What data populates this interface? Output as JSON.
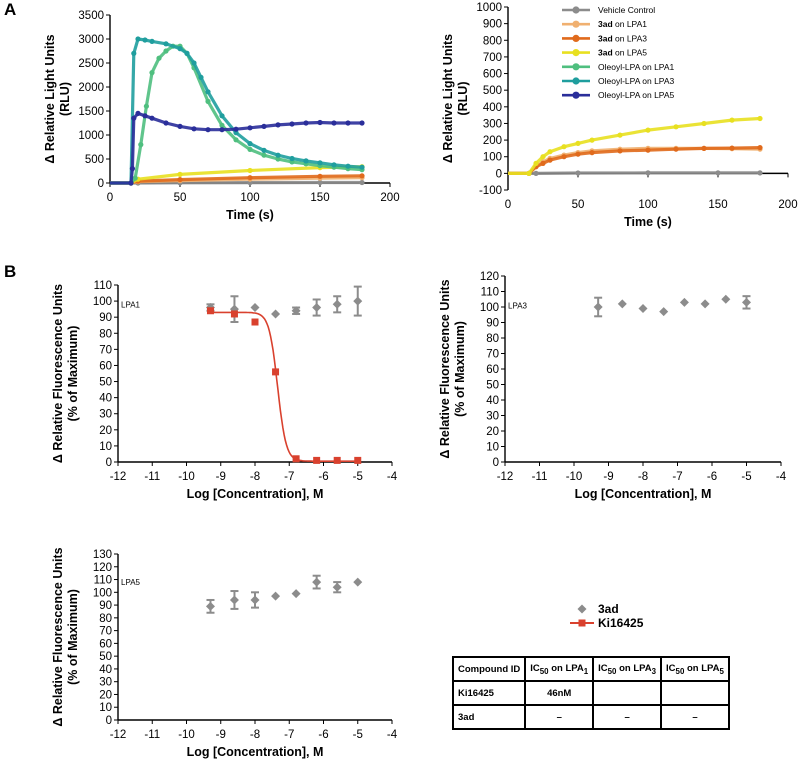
{
  "panel_labels": [
    "A",
    "B"
  ],
  "chart_data": [
    {
      "id": "A1",
      "type": "line",
      "xlabel": "Time (s)",
      "ylabel": "Δ Relative Light Units",
      "ylabel2": "(RLU)",
      "xlim": [
        0,
        200
      ],
      "ylim": [
        0,
        3500
      ],
      "xticks": [
        0,
        50,
        100,
        150,
        200
      ],
      "yticks": [
        0,
        500,
        1000,
        1500,
        2000,
        2500,
        3000,
        3500
      ],
      "series": [
        {
          "name": "Vehicle Control",
          "color": "#8c8c8c",
          "x": [
            0,
            10,
            15,
            20,
            50,
            100,
            150,
            180
          ],
          "y": [
            0,
            0,
            0,
            0,
            5,
            8,
            10,
            10
          ]
        },
        {
          "name": "3ad on LPA1",
          "color": "#f0b070",
          "x": [
            0,
            10,
            15,
            20,
            50,
            100,
            150,
            180
          ],
          "y": [
            0,
            0,
            0,
            30,
            50,
            80,
            100,
            110
          ]
        },
        {
          "name": "3ad on LPA3",
          "color": "#e06a1c",
          "x": [
            0,
            10,
            15,
            20,
            50,
            100,
            150,
            180
          ],
          "y": [
            0,
            0,
            0,
            40,
            70,
            110,
            140,
            150
          ]
        },
        {
          "name": "3ad on LPA5",
          "color": "#e8e020",
          "x": [
            0,
            10,
            15,
            20,
            50,
            100,
            150,
            180
          ],
          "y": [
            0,
            0,
            0,
            80,
            180,
            260,
            320,
            340
          ]
        },
        {
          "name": "Oleoyl-LPA on LPA1",
          "color": "#4fbf7f",
          "x": [
            0,
            10,
            15,
            18,
            22,
            26,
            30,
            35,
            40,
            45,
            50,
            55,
            60,
            70,
            80,
            90,
            100,
            110,
            120,
            130,
            140,
            150,
            160,
            170,
            180
          ],
          "y": [
            0,
            0,
            0,
            100,
            800,
            1600,
            2300,
            2600,
            2750,
            2850,
            2850,
            2700,
            2400,
            1700,
            1200,
            900,
            700,
            580,
            500,
            440,
            400,
            360,
            330,
            300,
            280
          ]
        },
        {
          "name": "Oleoyl-LPA on LPA3",
          "color": "#1f9e9e",
          "x": [
            0,
            10,
            15,
            17,
            20,
            25,
            30,
            40,
            50,
            55,
            60,
            65,
            70,
            80,
            90,
            100,
            110,
            120,
            130,
            140,
            150,
            160,
            170,
            180
          ],
          "y": [
            0,
            0,
            0,
            2700,
            3000,
            2980,
            2950,
            2900,
            2800,
            2700,
            2500,
            2200,
            1900,
            1400,
            1050,
            820,
            680,
            580,
            510,
            460,
            420,
            380,
            350,
            330
          ]
        },
        {
          "name": "Oleoyl-LPA on LPA5",
          "color": "#2a2e9a",
          "x": [
            0,
            10,
            15,
            16,
            17,
            20,
            25,
            30,
            40,
            50,
            60,
            70,
            80,
            90,
            100,
            110,
            120,
            130,
            140,
            150,
            160,
            170,
            180
          ],
          "y": [
            0,
            0,
            0,
            300,
            1350,
            1450,
            1400,
            1350,
            1250,
            1180,
            1130,
            1110,
            1110,
            1120,
            1150,
            1180,
            1210,
            1230,
            1250,
            1260,
            1250,
            1250,
            1250
          ]
        }
      ]
    },
    {
      "id": "A2",
      "type": "line",
      "xlabel": "Time (s)",
      "ylabel": "Δ Relative Light Units",
      "ylabel2": "(RLU)",
      "xlim": [
        0,
        200
      ],
      "ylim": [
        -100,
        1000
      ],
      "xticks": [
        0,
        50,
        100,
        150,
        200
      ],
      "yticks": [
        -100,
        0,
        100,
        200,
        300,
        400,
        500,
        600,
        700,
        800,
        900,
        1000
      ],
      "legend": [
        {
          "bold": "",
          "rest": "Vehicle Control",
          "color": "#8c8c8c"
        },
        {
          "bold": "3ad",
          "rest": " on LPA1",
          "color": "#f0b070"
        },
        {
          "bold": "3ad",
          "rest": " on LPA3",
          "color": "#e06a1c"
        },
        {
          "bold": "3ad",
          "rest": " on LPA5",
          "color": "#e8e020"
        },
        {
          "bold": "",
          "rest": "Oleoyl-LPA on LPA1",
          "color": "#4fbf7f"
        },
        {
          "bold": "",
          "rest": "Oleoyl-LPA on LPA3",
          "color": "#1f9e9e"
        },
        {
          "bold": "",
          "rest": "Oleoyl-LPA on LPA5",
          "color": "#2a2e9a"
        }
      ],
      "series": [
        {
          "name": "Vehicle Control",
          "color": "#8c8c8c",
          "x": [
            0,
            10,
            15,
            20,
            50,
            100,
            150,
            180
          ],
          "y": [
            0,
            0,
            0,
            0,
            2,
            3,
            3,
            3
          ]
        },
        {
          "name": "3ad on LPA1",
          "color": "#f0b070",
          "x": [
            0,
            10,
            15,
            20,
            25,
            30,
            40,
            50,
            60,
            80,
            100,
            120,
            140,
            160,
            180
          ],
          "y": [
            0,
            0,
            0,
            40,
            70,
            90,
            110,
            125,
            135,
            145,
            150,
            150,
            150,
            148,
            145
          ]
        },
        {
          "name": "3ad on LPA3",
          "color": "#e06a1c",
          "x": [
            0,
            10,
            15,
            20,
            25,
            30,
            40,
            50,
            60,
            80,
            100,
            120,
            140,
            160,
            180
          ],
          "y": [
            0,
            0,
            0,
            40,
            60,
            80,
            100,
            115,
            125,
            135,
            140,
            145,
            150,
            152,
            155
          ]
        },
        {
          "name": "3ad on LPA5",
          "color": "#e8e020",
          "x": [
            0,
            10,
            15,
            20,
            25,
            30,
            40,
            50,
            60,
            80,
            100,
            120,
            140,
            160,
            180
          ],
          "y": [
            0,
            0,
            0,
            60,
            100,
            130,
            160,
            180,
            200,
            230,
            260,
            280,
            300,
            320,
            330
          ]
        }
      ]
    },
    {
      "id": "B1",
      "type": "scatter",
      "label": "LPA1",
      "xlabel": "Log [Concentration], M",
      "ylabel": "Δ Relative Fluorescence Units",
      "ylabel2": "(% of Maximum)",
      "xlim": [
        -12,
        -4
      ],
      "ylim": [
        0,
        110
      ],
      "xticks": [
        -12,
        -11,
        -10,
        -9,
        -8,
        -7,
        -6,
        -5,
        -4
      ],
      "yticks": [
        0,
        10,
        20,
        30,
        40,
        50,
        60,
        70,
        80,
        90,
        100,
        110
      ],
      "series": [
        {
          "name": "3ad",
          "color": "#8c8c8c",
          "marker": "diamond",
          "x": [
            -9.3,
            -8.6,
            -8.0,
            -7.4,
            -6.8,
            -6.2,
            -5.6,
            -5.0
          ],
          "y": [
            96,
            95,
            96,
            92,
            94,
            96,
            98,
            100
          ],
          "err": [
            2,
            8,
            1,
            1,
            2,
            5,
            5,
            9
          ]
        },
        {
          "name": "Ki16425",
          "color": "#d9412e",
          "marker": "square",
          "x": [
            -9.3,
            -8.6,
            -8.0,
            -7.4,
            -6.8,
            -6.2,
            -5.6,
            -5.0
          ],
          "y": [
            94,
            92,
            87,
            56,
            2,
            1,
            1,
            1
          ],
          "err": [
            1,
            1,
            1,
            1,
            1,
            0.5,
            0.5,
            0.5
          ]
        }
      ],
      "fit": {
        "series": "Ki16425",
        "top": 93,
        "bottom": 0.5,
        "logIC50": -7.34,
        "hill": 3.5
      }
    },
    {
      "id": "B2",
      "type": "scatter",
      "label": "LPA3",
      "xlabel": "Log [Concentration], M",
      "ylabel": "Δ Relative Fluorescence Units",
      "ylabel2": "(% of Maximum)",
      "xlim": [
        -12,
        -4
      ],
      "ylim": [
        0,
        120
      ],
      "xticks": [
        -12,
        -11,
        -10,
        -9,
        -8,
        -7,
        -6,
        -5,
        -4
      ],
      "yticks": [
        0,
        10,
        20,
        30,
        40,
        50,
        60,
        70,
        80,
        90,
        100,
        110,
        120
      ],
      "series": [
        {
          "name": "3ad",
          "color": "#8c8c8c",
          "marker": "diamond",
          "x": [
            -9.3,
            -8.6,
            -8.0,
            -7.4,
            -6.8,
            -6.2,
            -5.6,
            -5.0
          ],
          "y": [
            100,
            102,
            99,
            97,
            103,
            102,
            105,
            103
          ],
          "err": [
            6,
            1,
            1,
            1,
            1,
            1,
            1,
            4
          ]
        }
      ]
    },
    {
      "id": "B3",
      "type": "scatter",
      "label": "LPA5",
      "xlabel": "Log [Concentration], M",
      "ylabel": "Δ Relative Fluorescence Units",
      "ylabel2": "(% of Maximum)",
      "xlim": [
        -12,
        -4
      ],
      "ylim": [
        0,
        130
      ],
      "xticks": [
        -12,
        -11,
        -10,
        -9,
        -8,
        -7,
        -6,
        -5,
        -4
      ],
      "yticks": [
        0,
        10,
        20,
        30,
        40,
        50,
        60,
        70,
        80,
        90,
        100,
        110,
        120,
        130
      ],
      "series": [
        {
          "name": "3ad",
          "color": "#8c8c8c",
          "marker": "diamond",
          "x": [
            -9.3,
            -8.6,
            -8.0,
            -7.4,
            -6.8,
            -6.2,
            -5.6,
            -5.0
          ],
          "y": [
            89,
            94,
            94,
            97,
            99,
            108,
            104,
            108
          ],
          "err": [
            5,
            7,
            6,
            1,
            1,
            5,
            4,
            1
          ]
        }
      ]
    }
  ],
  "b_legend": [
    {
      "label": "3ad",
      "color": "#8c8c8c",
      "marker": "diamond"
    },
    {
      "label": "Ki16425",
      "color": "#d9412e",
      "marker": "square"
    }
  ],
  "table": {
    "headers": [
      {
        "main": "Compound ID",
        "sub": ""
      },
      {
        "main": "IC",
        "sub50": "50",
        "mid": " on LPA",
        "sub": "1"
      },
      {
        "main": "IC",
        "sub50": "50",
        "mid": " on LPA",
        "sub": "3"
      },
      {
        "main": "IC",
        "sub50": "50",
        "mid": " on LPA",
        "sub": "5"
      }
    ],
    "rows": [
      [
        "Ki16425",
        "46nM",
        "",
        ""
      ],
      [
        "3ad",
        "–",
        "–",
        "–"
      ]
    ]
  }
}
